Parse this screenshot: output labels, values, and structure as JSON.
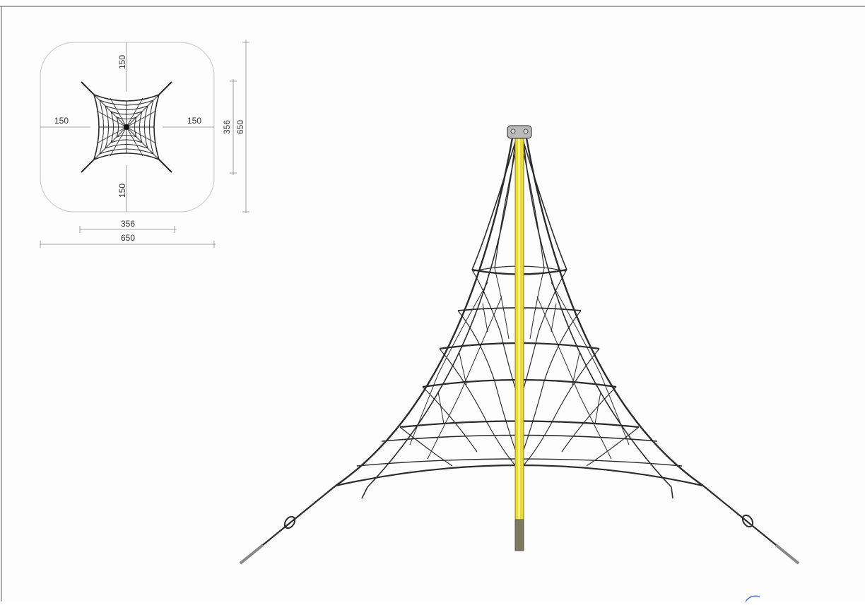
{
  "plan_view": {
    "dim_top_clearance": "150",
    "dim_bottom_clearance": "150",
    "dim_left_clearance": "150",
    "dim_right_clearance": "150",
    "dim_net_width": "356",
    "dim_total_width": "650",
    "dim_net_height": "356",
    "dim_total_height": "650"
  },
  "colors": {
    "pole": "#e6d93a",
    "pole_foot": "#7a7a5c",
    "rope": "#2b2b2b",
    "dimension_line": "#555555",
    "safety_zone": "#cfcfcf"
  },
  "icons": [
    "rope-pyramid-elevation-icon",
    "rope-net-plan-icon",
    "handwritten-mark-icon"
  ]
}
